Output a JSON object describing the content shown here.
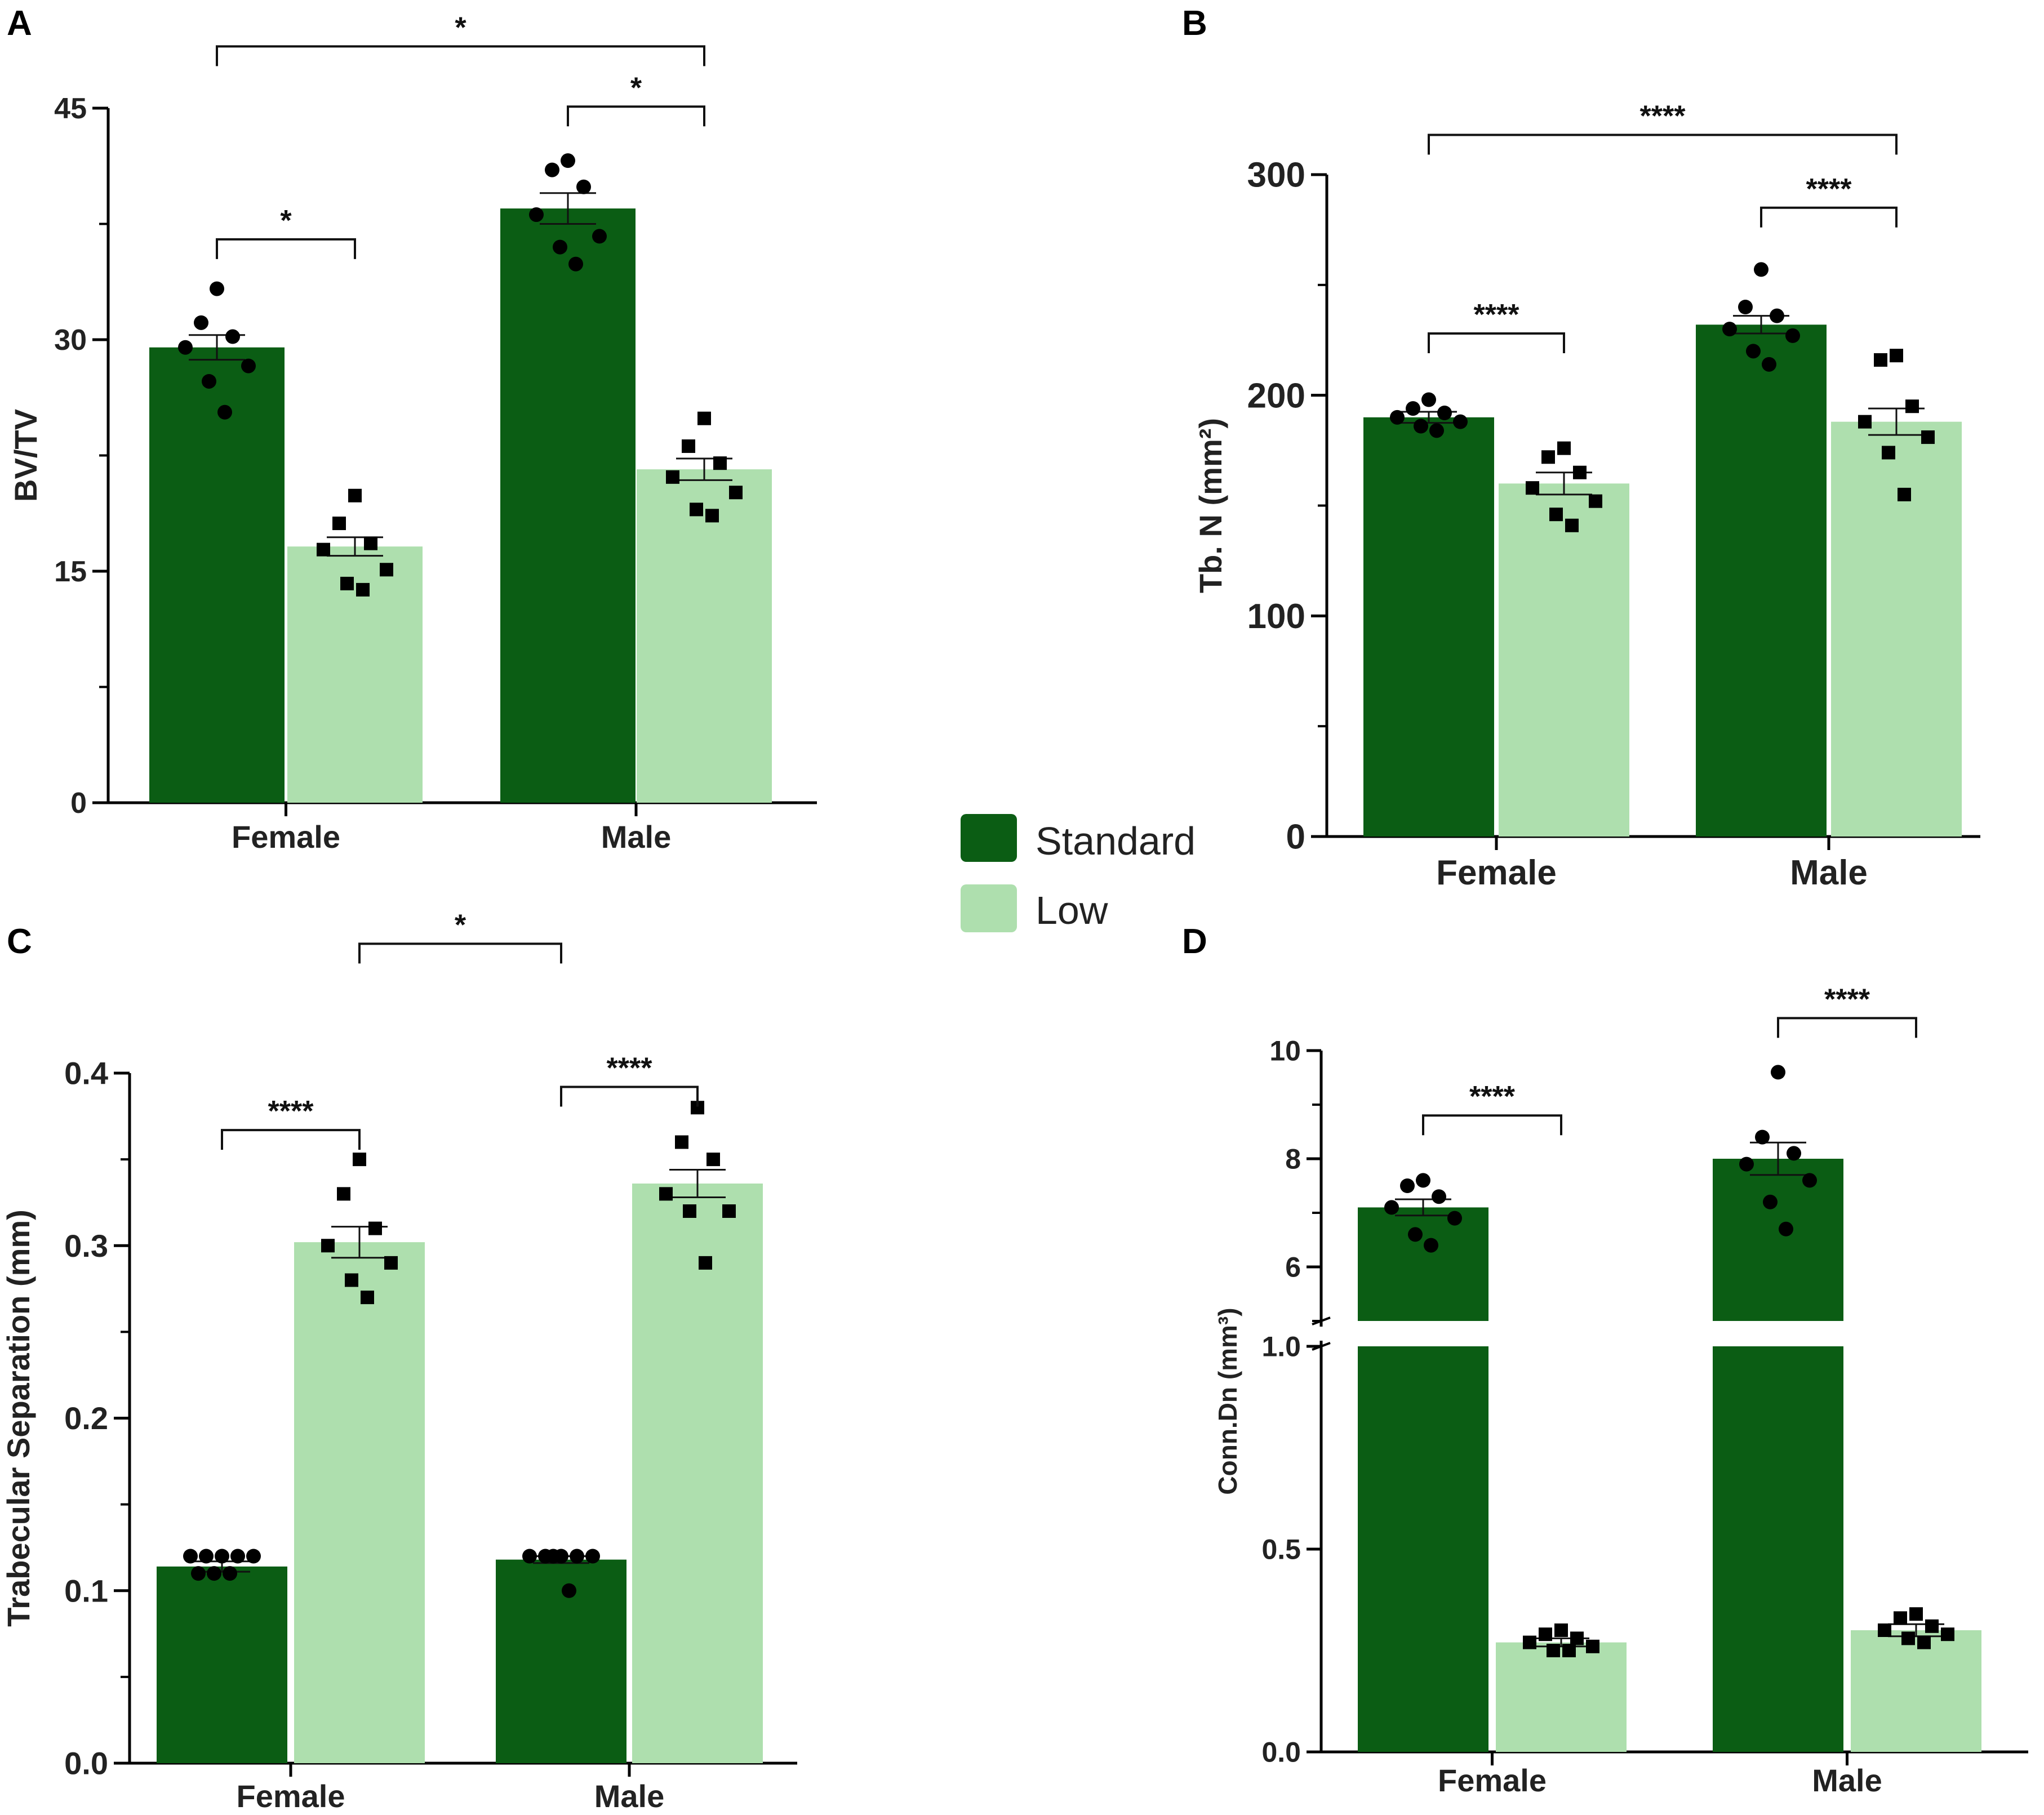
{
  "colors": {
    "standard": "#0b5d14",
    "low": "#aedfae",
    "axis": "#000000"
  },
  "legend": {
    "standard_label": "Standard",
    "low_label": "Low"
  },
  "chart_data": [
    {
      "panel": "A",
      "type": "bar",
      "title": "",
      "ylabel": "BV/TV",
      "xlabel": "",
      "ylim": [
        0,
        45
      ],
      "yticks": [
        0,
        15,
        30,
        45
      ],
      "categories": [
        "Female",
        "Male"
      ],
      "series": [
        {
          "name": "Standard",
          "values": [
            29.5,
            38.5
          ],
          "sem": [
            0.8,
            1.0
          ],
          "points": [
            [
              33.3,
              31.1,
              30.2,
              29.5,
              28.3,
              27.3,
              25.3
            ],
            [
              41.6,
              41.0,
              39.9,
              38.1,
              36.7,
              36.0,
              34.9
            ]
          ]
        },
        {
          "name": "Low",
          "values": [
            16.6,
            21.6
          ],
          "sem": [
            0.6,
            0.7
          ],
          "points": [
            [
              19.9,
              18.1,
              16.8,
              16.4,
              15.1,
              14.2,
              13.8
            ],
            [
              24.9,
              23.1,
              22.0,
              21.1,
              20.1,
              19.0,
              18.6
            ]
          ]
        }
      ],
      "annotations": [
        {
          "label": "*",
          "between": [
            "Female|Standard",
            "Female|Low"
          ],
          "y": 36.5
        },
        {
          "label": "*",
          "between": [
            "Male|Standard",
            "Male|Low"
          ],
          "y": 45.1
        },
        {
          "label": "*",
          "between": [
            "Female|Standard",
            "Male|Low"
          ],
          "y": 49.0
        }
      ]
    },
    {
      "panel": "B",
      "type": "bar",
      "title": "",
      "ylabel": "Tb. N (mm²)",
      "xlabel": "",
      "ylim": [
        0,
        300
      ],
      "yticks": [
        0,
        100,
        200,
        300
      ],
      "categories": [
        "Female",
        "Male"
      ],
      "series": [
        {
          "name": "Standard",
          "values": [
            190,
            232
          ],
          "sem": [
            2.5,
            4
          ],
          "points": [
            [
              198,
              194,
              192,
              190,
              188,
              186,
              184
            ],
            [
              257,
              240,
              236,
              230,
              227,
              220,
              214
            ]
          ]
        },
        {
          "name": "Low",
          "values": [
            160,
            188
          ],
          "sem": [
            5,
            6
          ],
          "points": [
            [
              176,
              172,
              165,
              158,
              152,
              146,
              141
            ],
            [
              218,
              216,
              195,
              188,
              181,
              174,
              155
            ]
          ]
        }
      ],
      "annotations": [
        {
          "label": "****",
          "between": [
            "Female|Standard",
            "Female|Low"
          ],
          "y": 228
        },
        {
          "label": "****",
          "between": [
            "Male|Standard",
            "Male|Low"
          ],
          "y": 285
        },
        {
          "label": "****",
          "between": [
            "Female|Standard",
            "Male|Low"
          ],
          "y": 318
        }
      ]
    },
    {
      "panel": "C",
      "type": "bar",
      "title": "",
      "ylabel": "Trabecular Separation (mm)",
      "xlabel": "",
      "ylim": [
        0,
        0.4
      ],
      "yticks": [
        "0.0",
        "0.1",
        "0.2",
        "0.3",
        "0.4"
      ],
      "categories": [
        "Female",
        "Male"
      ],
      "series": [
        {
          "name": "Standard",
          "values": [
            0.114,
            0.118
          ],
          "sem": [
            0.003,
            0.002
          ],
          "points": [
            [
              0.12,
              0.12,
              0.12,
              0.12,
              0.12,
              0.11,
              0.11,
              0.11
            ],
            [
              0.12,
              0.12,
              0.12,
              0.12,
              0.12,
              0.12,
              0.1
            ]
          ]
        },
        {
          "name": "Low",
          "values": [
            0.302,
            0.336
          ],
          "sem": [
            0.009,
            0.008
          ],
          "points": [
            [
              0.35,
              0.33,
              0.31,
              0.3,
              0.29,
              0.28,
              0.27
            ],
            [
              0.38,
              0.36,
              0.35,
              0.33,
              0.32,
              0.32,
              0.29
            ]
          ]
        }
      ],
      "annotations": [
        {
          "label": "****",
          "between": [
            "Female|Standard",
            "Female|Low"
          ],
          "y": 0.367
        },
        {
          "label": "****",
          "between": [
            "Male|Standard",
            "Male|Low"
          ],
          "y": 0.392
        },
        {
          "label": "*",
          "between": [
            "Female|Low",
            "Male|Standard"
          ],
          "y": 0.475
        }
      ]
    },
    {
      "panel": "D",
      "type": "bar",
      "title": "",
      "ylabel": "Conn.Dn (mm³)",
      "xlabel": "",
      "axis_break": {
        "lower": [
          0,
          1.0
        ],
        "upper": [
          5,
          10
        ]
      },
      "yticks_lower": [
        "0.0",
        "0.5",
        "1.0"
      ],
      "yticks_upper": [
        "6",
        "8",
        "10"
      ],
      "categories": [
        "Female",
        "Male"
      ],
      "series": [
        {
          "name": "Standard",
          "values": [
            7.1,
            8.0
          ],
          "sem": [
            0.15,
            0.3
          ],
          "points": [
            [
              7.6,
              7.5,
              7.3,
              7.1,
              6.9,
              6.6,
              6.4
            ],
            [
              9.6,
              8.4,
              8.1,
              7.9,
              7.6,
              7.2,
              6.7
            ]
          ]
        },
        {
          "name": "Low",
          "values": [
            0.27,
            0.3
          ],
          "sem": [
            0.01,
            0.015
          ],
          "points": [
            [
              0.3,
              0.29,
              0.28,
              0.27,
              0.26,
              0.25,
              0.25
            ],
            [
              0.34,
              0.33,
              0.31,
              0.3,
              0.29,
              0.28,
              0.27
            ]
          ]
        }
      ],
      "annotations": [
        {
          "label": "****",
          "between": [
            "Female|Standard",
            "Female|Low"
          ],
          "y": 8.8
        },
        {
          "label": "****",
          "between": [
            "Male|Standard",
            "Male|Low"
          ],
          "y": 10.6
        }
      ]
    }
  ]
}
